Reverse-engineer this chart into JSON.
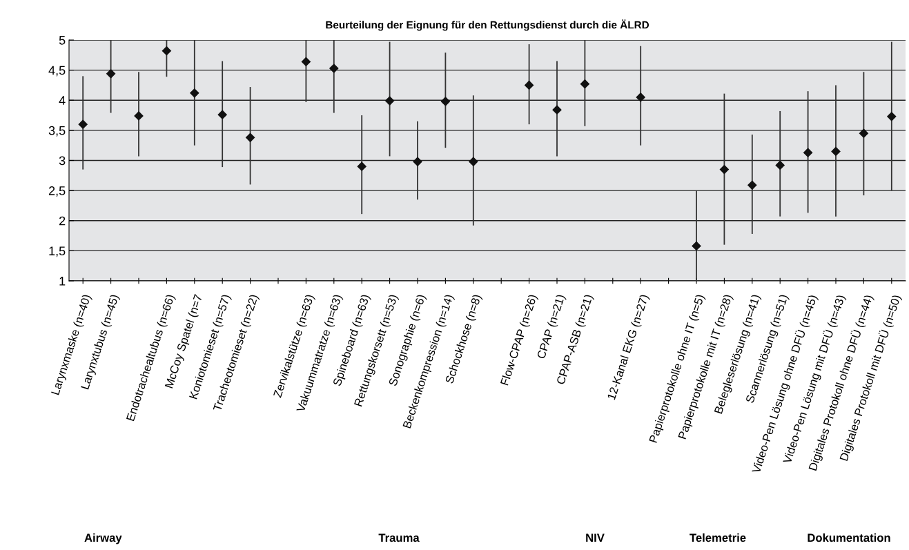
{
  "chart_data": {
    "type": "scatter",
    "title": "Beurteilung der Eignung für den Rettungsdienst durch die ÄLRD",
    "categories": [
      "Larynxmaske (n=40)",
      "Larynxtubus (n=45)",
      null,
      "Endotrachealtubus (n=66)",
      "McCoy Spatel (n=7",
      "Koniotomieset (n=57)",
      "Tracheotomieset (n=22)",
      null,
      "Zervikalstütze (n=63)",
      "Vakuummatratze (n=63)",
      "Spineboard (n=63)",
      "Rettungskorsett (n=53)",
      "Sonographie (n=6)",
      "Beckenkompression (n=14)",
      "Schockhose (n=8)",
      null,
      "Flow-CPAP (n=26)",
      "CPAP (n=21)",
      "CPAP-ASB (n=21)",
      null,
      "12-Kanal EKG (n=27)",
      null,
      "Papierprotokolle ohne IT (n=5)",
      "Papierprotokolle mit IT (n=28)",
      "Belegleserlösung (n=41)",
      "Scannerlösung (n=51)",
      "Video-Pen Lösung ohne DFÜ (n=45)",
      "Video-Pen Lösung mit DFÜ (n=43)",
      "Digitales Protokoll ohne DFÜ (n=44)",
      "Digitales Protokoll mit DFÜ (n=50)"
    ],
    "series": [
      {
        "color": "#111111",
        "marker": "diamond",
        "values": [
          3.6,
          4.44,
          3.74,
          4.82,
          4.12,
          3.76,
          3.38,
          null,
          4.64,
          4.53,
          2.9,
          3.99,
          2.98,
          3.98,
          2.98,
          null,
          4.25,
          3.84,
          4.27,
          null,
          4.05,
          null,
          1.58,
          2.85,
          2.59,
          2.92,
          3.13,
          3.15,
          3.45,
          3.73
        ],
        "errors": [
          [
            2.85,
            4.4
          ],
          [
            3.79,
            5
          ],
          [
            3.07,
            4.47
          ],
          [
            4.39,
            5
          ],
          [
            3.25,
            5
          ],
          [
            2.89,
            4.65
          ],
          [
            2.6,
            4.22
          ],
          null,
          [
            3.97,
            5
          ],
          [
            3.79,
            5
          ],
          [
            2.11,
            3.75
          ],
          [
            3.07,
            4.97
          ],
          [
            2.35,
            3.65
          ],
          [
            3.21,
            4.79
          ],
          [
            1.92,
            4.08
          ],
          null,
          [
            3.6,
            4.93
          ],
          [
            3.07,
            4.65
          ],
          [
            3.57,
            5
          ],
          null,
          [
            3.25,
            4.9
          ],
          null,
          [
            1,
            2.5
          ],
          [
            1.6,
            4.11
          ],
          [
            1.78,
            3.43
          ],
          [
            2.07,
            3.82
          ],
          [
            2.13,
            4.15
          ],
          [
            2.07,
            4.25
          ],
          [
            2.42,
            4.47
          ],
          [
            2.5,
            4.97
          ]
        ]
      }
    ],
    "ylim": [
      1,
      5
    ],
    "yticks": [
      1,
      {
        "value": 1.5,
        "label": "1,5"
      },
      2,
      {
        "value": 2.5,
        "label": "2,5"
      },
      3,
      {
        "value": 3.5,
        "label": "3,5"
      },
      4,
      {
        "value": 4.5,
        "label": "4,5"
      },
      5
    ],
    "grid": "y",
    "legend": false,
    "annotations": [
      "Airway",
      "Trauma",
      "NIV",
      "Telemetrie",
      "Dokumentation"
    ]
  }
}
